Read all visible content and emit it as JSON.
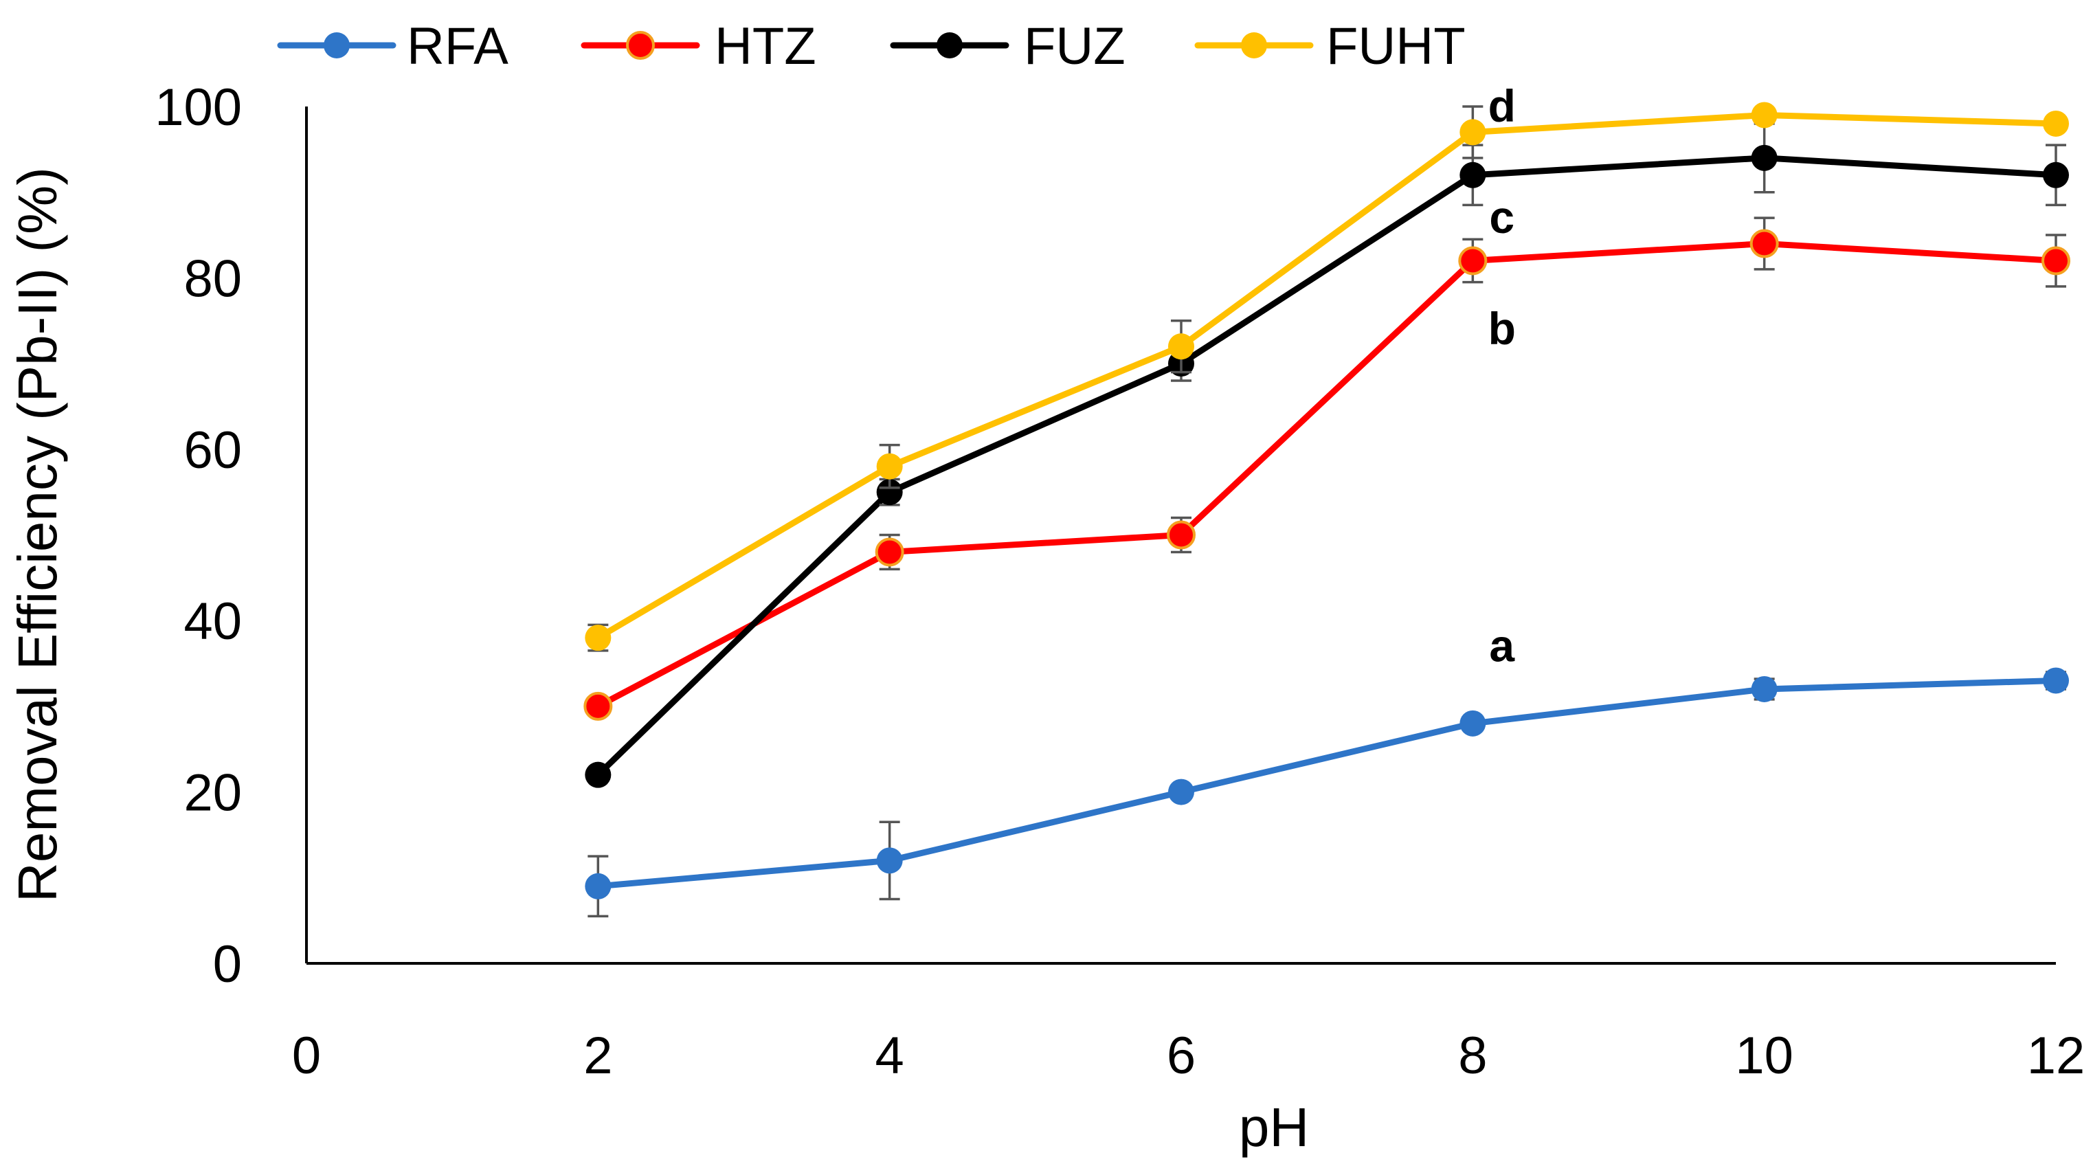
{
  "chart_data": {
    "type": "line",
    "title": "",
    "xlabel": "pH",
    "ylabel": "Removal Efficiency (Pb-II) (%)",
    "xlim": [
      0,
      12
    ],
    "ylim": [
      0,
      100
    ],
    "x_ticks": [
      0,
      2,
      4,
      6,
      8,
      10,
      12
    ],
    "y_ticks": [
      0,
      20,
      40,
      60,
      80,
      100
    ],
    "grid": false,
    "legend_position": "top",
    "x": [
      2,
      4,
      6,
      8,
      10,
      12
    ],
    "series": [
      {
        "name": "RFA",
        "color": "#2E75C8",
        "values": [
          9,
          12,
          20,
          28,
          32,
          33
        ],
        "errors": [
          3.5,
          4.5,
          0.5,
          0.5,
          1.2,
          1.0
        ]
      },
      {
        "name": "HTZ",
        "color": "#FF0000",
        "marker_fill": "#FF0000",
        "marker_edge": "#F4A020",
        "values": [
          30,
          48,
          50,
          82,
          84,
          82
        ],
        "errors": [
          1.0,
          2.0,
          2.0,
          2.5,
          3.0,
          3.0
        ]
      },
      {
        "name": "FUZ",
        "color": "#000000",
        "values": [
          22,
          55,
          70,
          92,
          94,
          92
        ],
        "errors": [
          0.5,
          1.5,
          2.0,
          3.5,
          4.0,
          3.5
        ]
      },
      {
        "name": "FUHT",
        "color": "#FFC000",
        "values": [
          38,
          58,
          72,
          97,
          99,
          98
        ],
        "errors": [
          1.5,
          2.5,
          3.0,
          3.0,
          0.5,
          0.5
        ]
      }
    ],
    "annotations": [
      {
        "text": "a",
        "x": 8.2,
        "y": 37
      },
      {
        "text": "b",
        "x": 8.2,
        "y": 74
      },
      {
        "text": "c",
        "x": 8.2,
        "y": 87
      },
      {
        "text": "d",
        "x": 8.2,
        "y": 100
      }
    ]
  }
}
